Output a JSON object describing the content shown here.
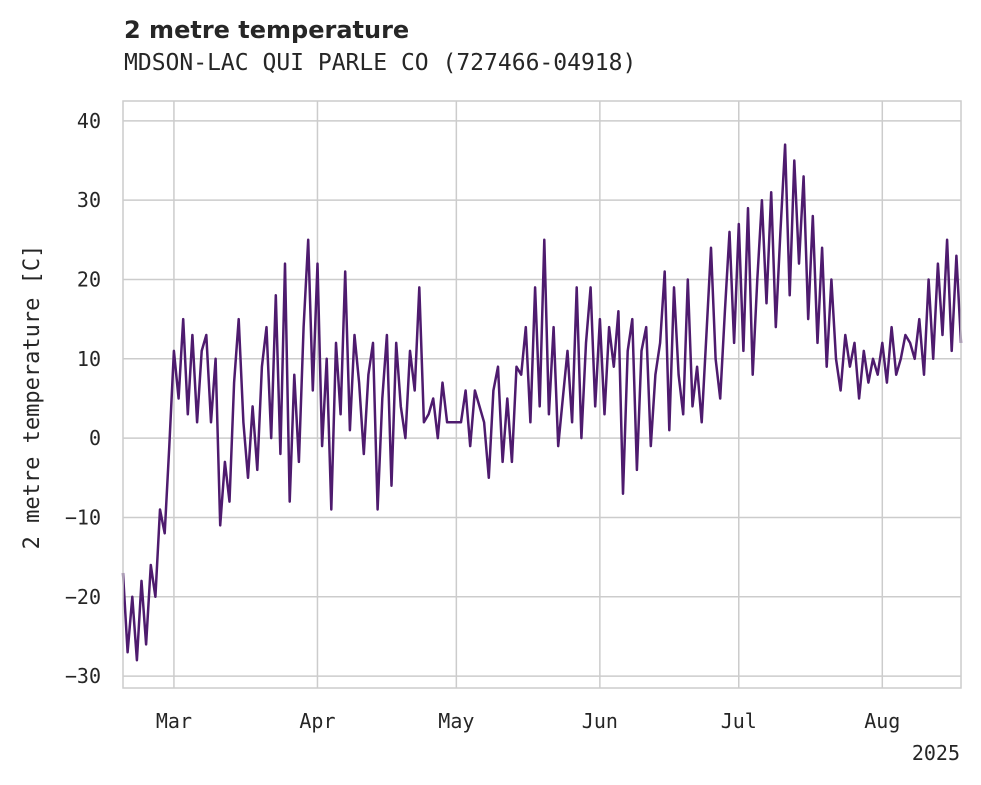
{
  "chart_data": {
    "type": "line",
    "title": "2 metre temperature",
    "subtitle": "MDSON-LAC QUI PARLE CO (727466-04918)",
    "xlabel": "",
    "ylabel": "2 metre temperature [C]",
    "ylim": [
      -31.5,
      42.5
    ],
    "y_ticks": [
      40,
      30,
      20,
      10,
      0,
      -10,
      -20,
      -30
    ],
    "y_tick_labels": [
      "40",
      "30",
      "20",
      "10",
      "0",
      "−10",
      "−20",
      "−30"
    ],
    "x_ticks": [
      "2025-03-01",
      "2025-04-01",
      "2025-05-01",
      "2025-06-01",
      "2025-07-01",
      "2025-08-01"
    ],
    "x_tick_labels": [
      "Mar",
      "Apr",
      "May",
      "Jun",
      "Jul",
      "Aug"
    ],
    "x_offset_label": "2025",
    "xlim": [
      "2025-02-18",
      "2025-08-18"
    ],
    "grid": true,
    "series": [
      {
        "color": "#4e1b6e",
        "segments": [
          [
            [
              "2025-02-18",
              -17
            ],
            [
              "2025-02-19",
              -27
            ],
            [
              "2025-02-20",
              -20
            ],
            [
              "2025-02-21",
              -28
            ],
            [
              "2025-02-22",
              -18
            ],
            [
              "2025-02-23",
              -26
            ],
            [
              "2025-02-24",
              -16
            ],
            [
              "2025-02-25",
              -20
            ],
            [
              "2025-02-26",
              -9
            ],
            [
              "2025-02-27",
              -12
            ],
            [
              "2025-02-28",
              -1
            ],
            [
              "2025-03-01",
              11
            ],
            [
              "2025-03-02",
              5
            ],
            [
              "2025-03-03",
              15
            ],
            [
              "2025-03-04",
              3
            ],
            [
              "2025-03-05",
              13
            ],
            [
              "2025-03-06",
              2
            ],
            [
              "2025-03-07",
              11
            ],
            [
              "2025-03-08",
              13
            ],
            [
              "2025-03-09",
              2
            ],
            [
              "2025-03-10",
              10
            ],
            [
              "2025-03-11",
              -11
            ],
            [
              "2025-03-12",
              -3
            ],
            [
              "2025-03-13",
              -8
            ],
            [
              "2025-03-14",
              7
            ],
            [
              "2025-03-15",
              15
            ],
            [
              "2025-03-16",
              2
            ],
            [
              "2025-03-17",
              -5
            ],
            [
              "2025-03-18",
              4
            ],
            [
              "2025-03-19",
              -4
            ],
            [
              "2025-03-20",
              9
            ],
            [
              "2025-03-21",
              14
            ],
            [
              "2025-03-22",
              0
            ],
            [
              "2025-03-23",
              18
            ],
            [
              "2025-03-24",
              -2
            ],
            [
              "2025-03-25",
              22
            ],
            [
              "2025-03-26",
              -8
            ],
            [
              "2025-03-27",
              8
            ],
            [
              "2025-03-28",
              -3
            ],
            [
              "2025-03-29",
              14
            ],
            [
              "2025-03-30",
              25
            ],
            [
              "2025-03-31",
              6
            ],
            [
              "2025-04-01",
              22
            ],
            [
              "2025-04-02",
              -1
            ],
            [
              "2025-04-03",
              10
            ],
            [
              "2025-04-04",
              -9
            ],
            [
              "2025-04-05",
              12
            ],
            [
              "2025-04-06",
              3
            ],
            [
              "2025-04-07",
              21
            ],
            [
              "2025-04-08",
              1
            ],
            [
              "2025-04-09",
              13
            ],
            [
              "2025-04-10",
              7
            ],
            [
              "2025-04-11",
              -2
            ],
            [
              "2025-04-12",
              8
            ],
            [
              "2025-04-13",
              12
            ],
            [
              "2025-04-14",
              -9
            ],
            [
              "2025-04-15",
              5
            ],
            [
              "2025-04-16",
              13
            ],
            [
              "2025-04-17",
              -6
            ],
            [
              "2025-04-18",
              12
            ],
            [
              "2025-04-19",
              4
            ],
            [
              "2025-04-20",
              0
            ],
            [
              "2025-04-21",
              11
            ],
            [
              "2025-04-22",
              6
            ],
            [
              "2025-04-23",
              19
            ],
            [
              "2025-04-24",
              2
            ],
            [
              "2025-04-25",
              3
            ],
            [
              "2025-04-26",
              5
            ],
            [
              "2025-04-27",
              0
            ],
            [
              "2025-04-28",
              7
            ],
            [
              "2025-04-29",
              2
            ],
            [
              "2025-04-30",
              2
            ],
            [
              "2025-05-01",
              2
            ],
            [
              "2025-05-02",
              2
            ],
            [
              "2025-05-03",
              6
            ],
            [
              "2025-05-04",
              -1
            ],
            [
              "2025-05-05",
              6
            ],
            [
              "2025-05-06",
              4
            ],
            [
              "2025-05-07",
              2
            ],
            [
              "2025-05-08",
              -5
            ],
            [
              "2025-05-09",
              6
            ],
            [
              "2025-05-10",
              9
            ],
            [
              "2025-05-11",
              -3
            ],
            [
              "2025-05-12",
              5
            ],
            [
              "2025-05-13",
              -3
            ],
            [
              "2025-05-14",
              9
            ],
            [
              "2025-05-15",
              8
            ],
            [
              "2025-05-16",
              14
            ],
            [
              "2025-05-17",
              2
            ],
            [
              "2025-05-18",
              19
            ],
            [
              "2025-05-19",
              4
            ],
            [
              "2025-05-20",
              25
            ],
            [
              "2025-05-21",
              3
            ],
            [
              "2025-05-22",
              14
            ],
            [
              "2025-05-23",
              -1
            ],
            [
              "2025-05-24",
              5
            ],
            [
              "2025-05-25",
              11
            ],
            [
              "2025-05-26",
              2
            ],
            [
              "2025-05-27",
              19
            ],
            [
              "2025-05-28",
              0
            ],
            [
              "2025-05-29",
              12
            ],
            [
              "2025-05-30",
              19
            ],
            [
              "2025-05-31",
              4
            ],
            [
              "2025-06-01",
              15
            ],
            [
              "2025-06-02",
              3
            ],
            [
              "2025-06-03",
              14
            ],
            [
              "2025-06-04",
              9
            ],
            [
              "2025-06-05",
              16
            ],
            [
              "2025-06-06",
              -7
            ],
            [
              "2025-06-07",
              11
            ],
            [
              "2025-06-08",
              15
            ],
            [
              "2025-06-09",
              -4
            ],
            [
              "2025-06-10",
              11
            ],
            [
              "2025-06-11",
              14
            ],
            [
              "2025-06-12",
              -1
            ],
            [
              "2025-06-13",
              8
            ],
            [
              "2025-06-14",
              12
            ],
            [
              "2025-06-15",
              21
            ],
            [
              "2025-06-16",
              1
            ],
            [
              "2025-06-17",
              19
            ],
            [
              "2025-06-18",
              8
            ],
            [
              "2025-06-19",
              3
            ],
            [
              "2025-06-20",
              20
            ],
            [
              "2025-06-21",
              4
            ],
            [
              "2025-06-22",
              9
            ],
            [
              "2025-06-23",
              2
            ],
            [
              "2025-06-24",
              13
            ],
            [
              "2025-06-25",
              24
            ],
            [
              "2025-06-26",
              10
            ],
            [
              "2025-06-27",
              5
            ],
            [
              "2025-06-28",
              16
            ],
            [
              "2025-06-29",
              26
            ],
            [
              "2025-06-30",
              12
            ],
            [
              "2025-07-01",
              27
            ],
            [
              "2025-07-02",
              11
            ],
            [
              "2025-07-03",
              29
            ],
            [
              "2025-07-04",
              8
            ],
            [
              "2025-07-05",
              20
            ],
            [
              "2025-07-06",
              30
            ],
            [
              "2025-07-07",
              17
            ],
            [
              "2025-07-08",
              31
            ],
            [
              "2025-07-09",
              14
            ],
            [
              "2025-07-10",
              26
            ],
            [
              "2025-07-11",
              37
            ],
            [
              "2025-07-12",
              18
            ],
            [
              "2025-07-13",
              35
            ],
            [
              "2025-07-14",
              22
            ],
            [
              "2025-07-15",
              33
            ],
            [
              "2025-07-16",
              15
            ],
            [
              "2025-07-17",
              28
            ],
            [
              "2025-07-18",
              12
            ],
            [
              "2025-07-19",
              24
            ],
            [
              "2025-07-20",
              9
            ],
            [
              "2025-07-21",
              20
            ],
            [
              "2025-07-22",
              10
            ],
            [
              "2025-07-23",
              6
            ],
            [
              "2025-07-24",
              13
            ],
            [
              "2025-07-25",
              9
            ],
            [
              "2025-07-26",
              12
            ],
            [
              "2025-07-27",
              5
            ],
            [
              "2025-07-28",
              11
            ],
            [
              "2025-07-29",
              7
            ],
            [
              "2025-07-30",
              10
            ],
            [
              "2025-07-31",
              8
            ],
            [
              "2025-08-01",
              12
            ],
            [
              "2025-08-02",
              7
            ],
            [
              "2025-08-03",
              14
            ],
            [
              "2025-08-04",
              8
            ],
            [
              "2025-08-05",
              10
            ],
            [
              "2025-08-06",
              13
            ],
            [
              "2025-08-07",
              12
            ],
            [
              "2025-08-08",
              10
            ],
            [
              "2025-08-09",
              15
            ],
            [
              "2025-08-10",
              8
            ],
            [
              "2025-08-11",
              20
            ],
            [
              "2025-08-12",
              10
            ],
            [
              "2025-08-13",
              22
            ],
            [
              "2025-08-14",
              13
            ],
            [
              "2025-08-15",
              25
            ],
            [
              "2025-08-16",
              11
            ],
            [
              "2025-08-17",
              23
            ],
            [
              "2025-08-18",
              12
            ]
          ]
        ]
      }
    ]
  }
}
